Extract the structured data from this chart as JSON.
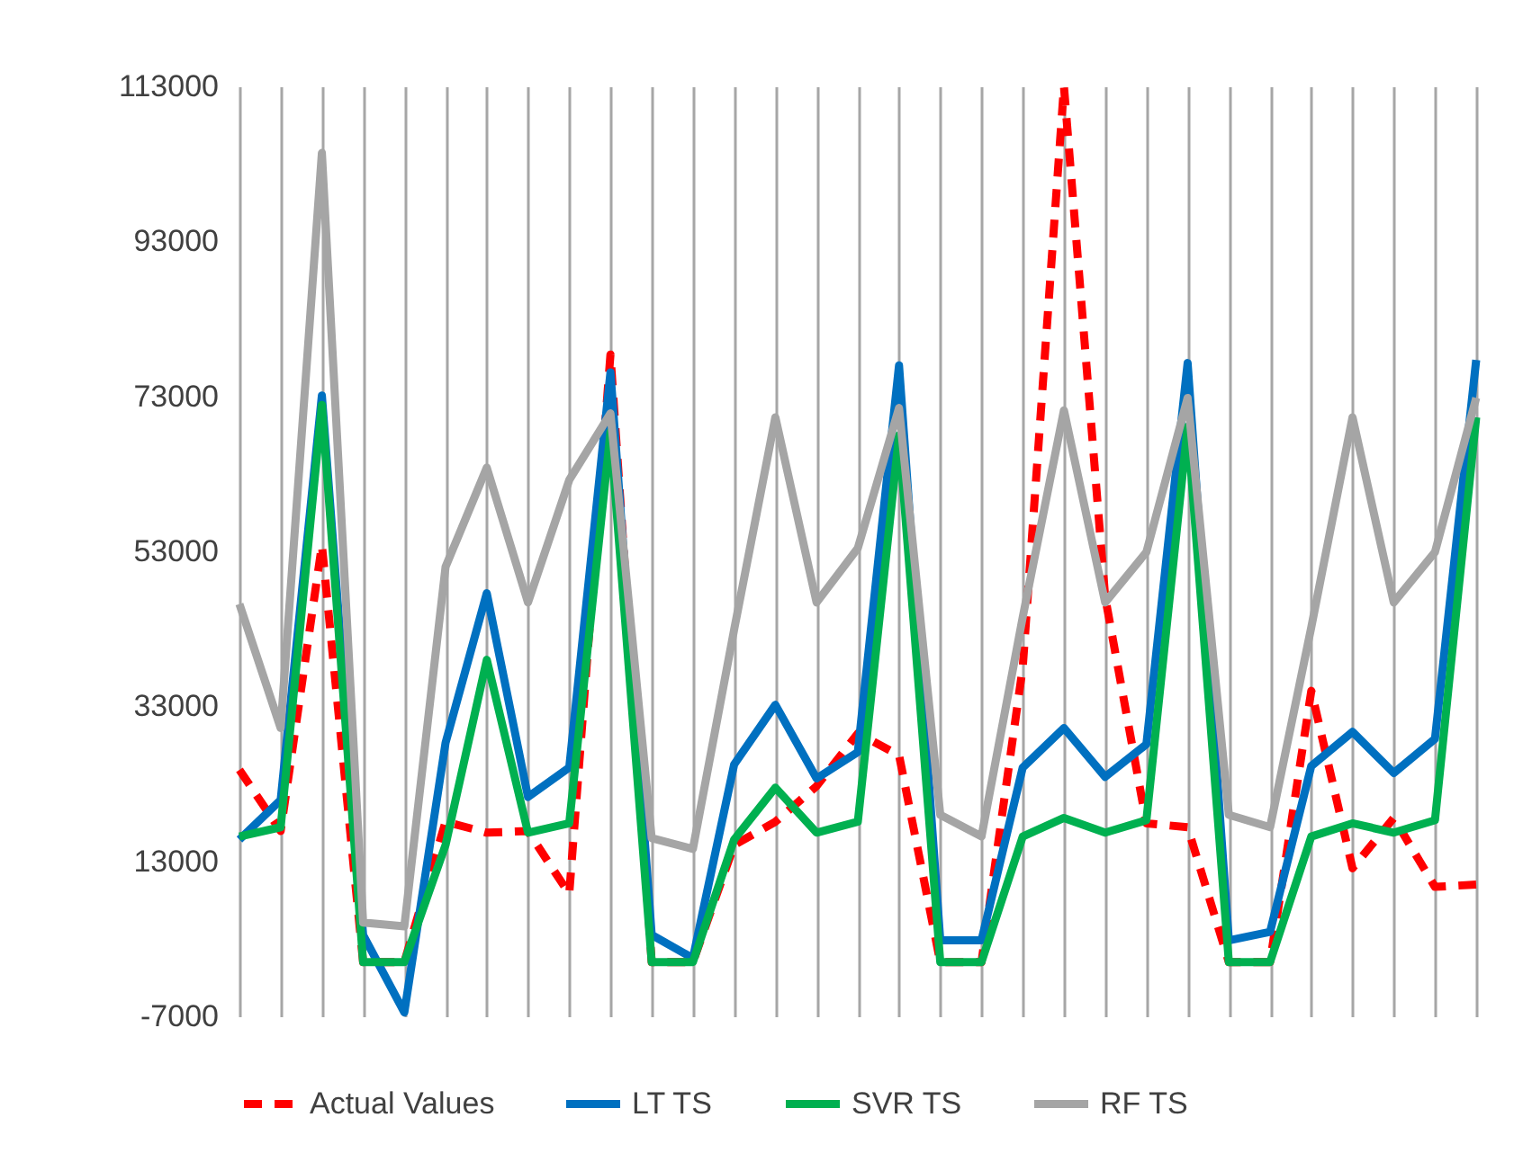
{
  "chart_data": {
    "type": "line",
    "categories": [
      null,
      null,
      null,
      null,
      null,
      null,
      null,
      null,
      null,
      null,
      null,
      null,
      null,
      null,
      null,
      null,
      null,
      null,
      null,
      null,
      null,
      null,
      null,
      null,
      null,
      null,
      null,
      null,
      null,
      null,
      null
    ],
    "series": [
      {
        "name": "Actual Values",
        "color": "#ff0000",
        "line_style": "dashed",
        "values": [
          24800,
          16900,
          53800,
          0,
          0,
          18100,
          16700,
          16900,
          8800,
          78400,
          0,
          0,
          15100,
          18100,
          22700,
          29500,
          26700,
          0,
          0,
          38000,
          113000,
          47100,
          17900,
          17400,
          0,
          0,
          35000,
          12100,
          18600,
          9700,
          10000
        ]
      },
      {
        "name": "LT TS",
        "color": "#0070c0",
        "line_style": "solid",
        "values": [
          15800,
          20900,
          73100,
          3500,
          -6500,
          28300,
          47600,
          21300,
          25100,
          76100,
          3500,
          500,
          25500,
          33200,
          23700,
          27100,
          77000,
          2800,
          2800,
          25100,
          30200,
          23900,
          28100,
          77300,
          2800,
          3900,
          25300,
          29700,
          24400,
          28800,
          77700
        ]
      },
      {
        "name": "SVR TS",
        "color": "#00b050",
        "line_style": "solid",
        "values": [
          16200,
          17400,
          71900,
          0,
          0,
          15100,
          39000,
          16700,
          17900,
          68400,
          0,
          0,
          15800,
          22500,
          16700,
          18100,
          68000,
          0,
          0,
          16200,
          18600,
          16700,
          18300,
          69100,
          0,
          0,
          16200,
          17900,
          16700,
          18300,
          70300
        ]
      },
      {
        "name": "RF TS",
        "color": "#a5a5a5",
        "line_style": "solid",
        "values": [
          46200,
          30200,
          104400,
          5100,
          4600,
          51000,
          63800,
          46400,
          62200,
          70800,
          16000,
          14600,
          42900,
          70300,
          46400,
          53400,
          71500,
          19000,
          16200,
          44500,
          71200,
          46400,
          52900,
          72800,
          19000,
          17400,
          43200,
          70300,
          46400,
          52900,
          72800
        ]
      }
    ],
    "ylim": [
      -7000,
      113000
    ],
    "yticks": [
      -7000,
      13000,
      33000,
      53000,
      73000,
      93000,
      113000
    ],
    "grid": "x",
    "legend": "bottom",
    "tick_labels": "y",
    "marker": "none"
  }
}
